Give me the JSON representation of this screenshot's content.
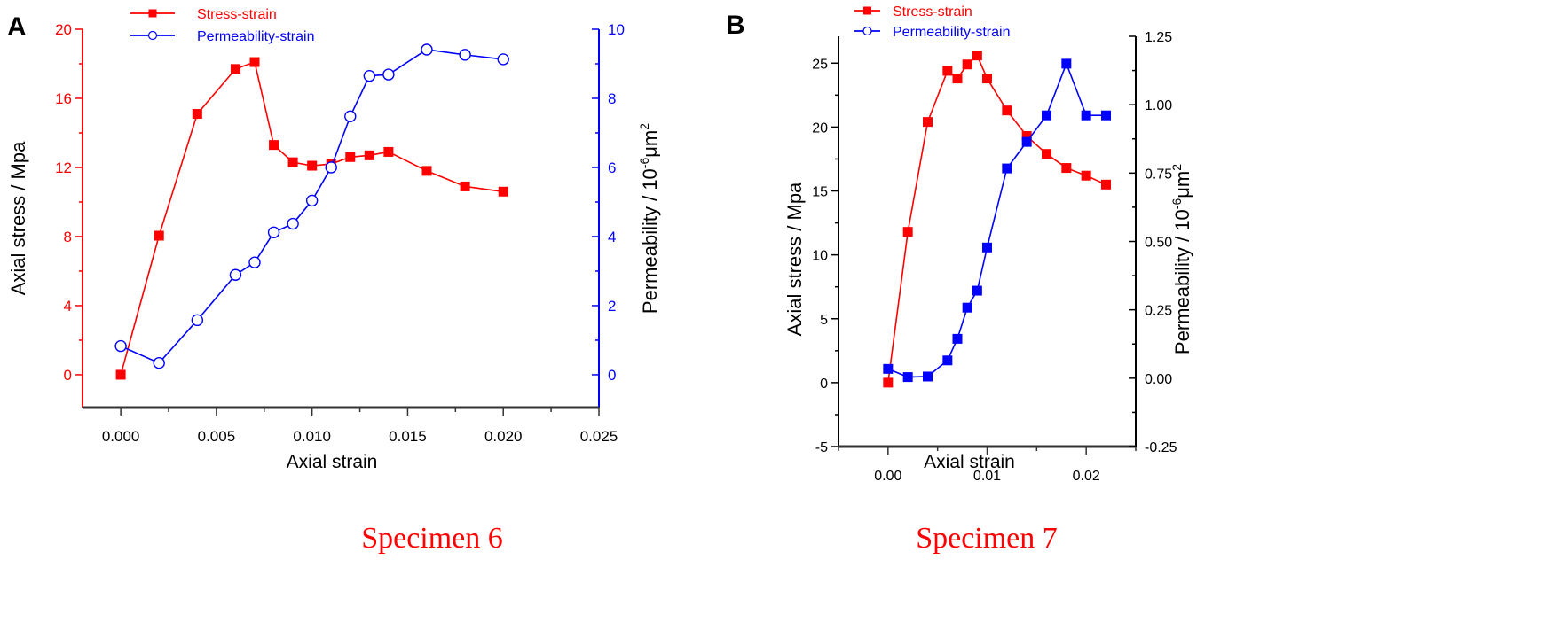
{
  "colors": {
    "stress": "#ff0000",
    "permeability": "#0000ff",
    "axis": "#000000",
    "caption": "#ff0000"
  },
  "chart_data": [
    {
      "type": "line",
      "panel_label": "A",
      "caption": "Specimen 6",
      "xlabel": "Axial strain",
      "ylabel": "Axial stress / Mpa",
      "y2label": "Permeability / 10",
      "y2label_sup": "-6",
      "y2label_unit": "μm",
      "y2label_sup2": "2",
      "xlim": [
        -0.002,
        0.025
      ],
      "ylim": [
        -1.9,
        20
      ],
      "y2lim": [
        -0.95,
        10
      ],
      "xticks": [
        0.0,
        0.005,
        0.01,
        0.015,
        0.02,
        0.025
      ],
      "xtick_labels": [
        "0.000",
        "0.005",
        "0.010",
        "0.015",
        "0.020",
        "0.025"
      ],
      "xminor": 0.0025,
      "yticks": [
        0,
        4,
        8,
        12,
        16,
        20
      ],
      "ytick_labels": [
        "0",
        "4",
        "8",
        "12",
        "16",
        "20"
      ],
      "yminor": 2,
      "y2ticks": [
        0,
        2,
        4,
        6,
        8,
        10
      ],
      "y2tick_labels": [
        "0",
        "2",
        "4",
        "6",
        "8",
        "10"
      ],
      "y2minor": 1,
      "colored_axes": true,
      "legend": "top-left",
      "series": [
        {
          "name": "Stress-strain",
          "axis": "left",
          "marker": "filled-square",
          "x": [
            0,
            0.002,
            0.004,
            0.006,
            0.007,
            0.008,
            0.009,
            0.01,
            0.011,
            0.012,
            0.013,
            0.014,
            0.016,
            0.018,
            0.02
          ],
          "y": [
            0,
            8.05,
            15.1,
            17.7,
            18.1,
            13.3,
            12.3,
            12.1,
            12.2,
            12.6,
            12.7,
            12.9,
            11.8,
            10.9,
            10.6
          ]
        },
        {
          "name": "Permeability-strain",
          "axis": "right",
          "marker": "open-circle",
          "legend_marker": "open-circle",
          "x": [
            0,
            0.002,
            0.004,
            0.006,
            0.007,
            0.008,
            0.009,
            0.01,
            0.011,
            0.012,
            0.013,
            0.014,
            0.016,
            0.018,
            0.02
          ],
          "y": [
            0.83,
            0.34,
            1.58,
            2.89,
            3.25,
            4.12,
            4.37,
            5.04,
            6.0,
            7.48,
            8.65,
            8.69,
            9.41,
            9.26,
            9.13
          ]
        }
      ]
    },
    {
      "type": "line",
      "panel_label": "B",
      "caption": "Specimen 7",
      "xlabel": "Axial strain",
      "ylabel": "Axial stress / Mpa",
      "y2label": "Permeability / 10",
      "y2label_sup": "-6",
      "y2label_unit": "μm",
      "y2label_sup2": "2",
      "xlim": [
        -0.005,
        0.025
      ],
      "ylim": [
        -5,
        27.1
      ],
      "y2lim": [
        -0.25,
        1.25
      ],
      "xticks": [
        0.0,
        0.01,
        0.02
      ],
      "xtick_labels": [
        "0.00",
        "0.01",
        "0.02"
      ],
      "xminor": 0.005,
      "yticks": [
        -5,
        0,
        5,
        10,
        15,
        20,
        25
      ],
      "ytick_labels": [
        "-5",
        "0",
        "5",
        "10",
        "15",
        "20",
        "25"
      ],
      "yminor": 2.5,
      "y2ticks": [
        -0.25,
        0,
        0.25,
        0.5,
        0.75,
        1.0,
        1.25
      ],
      "y2tick_labels": [
        "-0.25",
        "0.00",
        "0.25",
        "0.50",
        "0.75",
        "1.00",
        "1.25"
      ],
      "y2minor": 0.125,
      "colored_axes": false,
      "legend": "top-left",
      "series": [
        {
          "name": "Stress-strain",
          "axis": "left",
          "marker": "filled-square",
          "x": [
            0,
            0.002,
            0.004,
            0.006,
            0.007,
            0.008,
            0.009,
            0.01,
            0.012,
            0.014,
            0.016,
            0.018,
            0.02,
            0.022
          ],
          "y": [
            0,
            11.8,
            20.4,
            24.4,
            23.8,
            24.9,
            25.6,
            23.8,
            21.3,
            19.3,
            17.9,
            16.8,
            16.2,
            15.5
          ]
        },
        {
          "name": "Permeability-strain",
          "axis": "right",
          "marker": "filled-square",
          "legend_marker": "open-circle",
          "x": [
            0,
            0.002,
            0.004,
            0.006,
            0.007,
            0.008,
            0.009,
            0.01,
            0.012,
            0.014,
            0.016,
            0.018,
            0.02,
            0.022
          ],
          "y": [
            0.034,
            0.004,
            0.006,
            0.065,
            0.144,
            0.258,
            0.32,
            0.478,
            0.767,
            0.864,
            0.961,
            1.15,
            0.961,
            0.961
          ]
        }
      ]
    }
  ]
}
